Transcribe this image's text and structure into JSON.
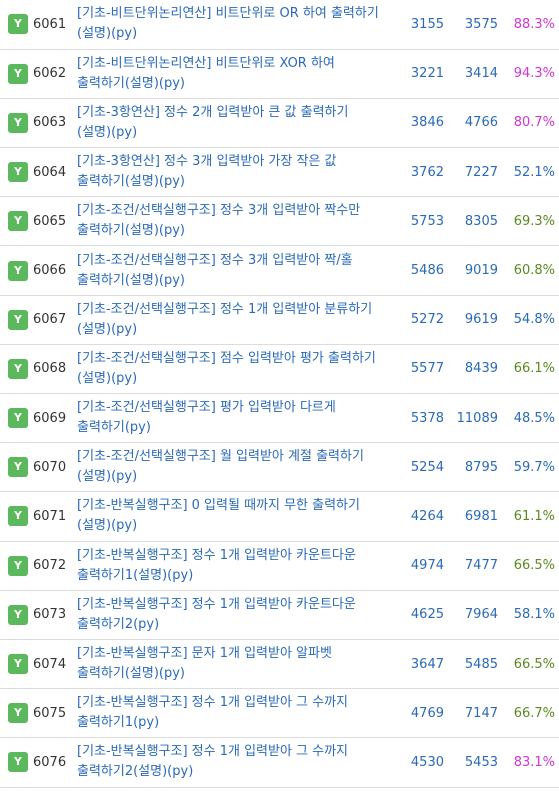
{
  "colors": {
    "badge_bg": "#5cb85c",
    "link": "#2a6ab8",
    "rate_magenta": "#d435d4",
    "rate_olive": "#5a8a1f"
  },
  "status_icon": "accepted-badge",
  "problems": [
    {
      "status": "Y",
      "id": "6061",
      "title": "[기초-비트단위논리연산] 비트단위로 OR 하여 출력하기(설명)(py)",
      "solved": "3155",
      "submissions": "3575",
      "rate": "88.3%",
      "rate_color": "#d435d4"
    },
    {
      "status": "Y",
      "id": "6062",
      "title": "[기초-비트단위논리연산] 비트단위로 XOR 하여 출력하기(설명)(py)",
      "solved": "3221",
      "submissions": "3414",
      "rate": "94.3%",
      "rate_color": "#d435d4"
    },
    {
      "status": "Y",
      "id": "6063",
      "title": "[기초-3항연산] 정수 2개 입력받아 큰 값 출력하기(설명)(py)",
      "solved": "3846",
      "submissions": "4766",
      "rate": "80.7%",
      "rate_color": "#d435d4"
    },
    {
      "status": "Y",
      "id": "6064",
      "title": "[기초-3항연산] 정수 3개 입력받아 가장 작은 값 출력하기(설명)(py)",
      "solved": "3762",
      "submissions": "7227",
      "rate": "52.1%",
      "rate_color": "#2a6ab8"
    },
    {
      "status": "Y",
      "id": "6065",
      "title": "[기초-조건/선택실행구조] 정수 3개 입력받아 짝수만 출력하기(설명)(py)",
      "solved": "5753",
      "submissions": "8305",
      "rate": "69.3%",
      "rate_color": "#5a8a1f"
    },
    {
      "status": "Y",
      "id": "6066",
      "title": "[기초-조건/선택실행구조] 정수 3개 입력받아 짝/홀 출력하기(설명)(py)",
      "solved": "5486",
      "submissions": "9019",
      "rate": "60.8%",
      "rate_color": "#5a8a1f"
    },
    {
      "status": "Y",
      "id": "6067",
      "title": "[기초-조건/선택실행구조] 정수 1개 입력받아 분류하기(설명)(py)",
      "solved": "5272",
      "submissions": "9619",
      "rate": "54.8%",
      "rate_color": "#2a6ab8"
    },
    {
      "status": "Y",
      "id": "6068",
      "title": "[기초-조건/선택실행구조] 점수 입력받아 평가 출력하기(설명)(py)",
      "solved": "5577",
      "submissions": "8439",
      "rate": "66.1%",
      "rate_color": "#5a8a1f"
    },
    {
      "status": "Y",
      "id": "6069",
      "title": "[기초-조건/선택실행구조] 평가 입력받아 다르게 출력하기(py)",
      "solved": "5378",
      "submissions": "11089",
      "rate": "48.5%",
      "rate_color": "#2a6ab8"
    },
    {
      "status": "Y",
      "id": "6070",
      "title": "[기초-조건/선택실행구조] 월 입력받아 계절 출력하기(설명)(py)",
      "solved": "5254",
      "submissions": "8795",
      "rate": "59.7%",
      "rate_color": "#2a6ab8"
    },
    {
      "status": "Y",
      "id": "6071",
      "title": "[기초-반복실행구조] 0 입력될 때까지 무한 출력하기(설명)(py)",
      "solved": "4264",
      "submissions": "6981",
      "rate": "61.1%",
      "rate_color": "#5a8a1f"
    },
    {
      "status": "Y",
      "id": "6072",
      "title": "[기초-반복실행구조] 정수 1개 입력받아 카운트다운 출력하기1(설명)(py)",
      "solved": "4974",
      "submissions": "7477",
      "rate": "66.5%",
      "rate_color": "#5a8a1f"
    },
    {
      "status": "Y",
      "id": "6073",
      "title": "[기초-반복실행구조] 정수 1개 입력받아 카운트다운 출력하기2(py)",
      "solved": "4625",
      "submissions": "7964",
      "rate": "58.1%",
      "rate_color": "#2a6ab8"
    },
    {
      "status": "Y",
      "id": "6074",
      "title": "[기초-반복실행구조] 문자 1개 입력받아 알파벳 출력하기(설명)(py)",
      "solved": "3647",
      "submissions": "5485",
      "rate": "66.5%",
      "rate_color": "#5a8a1f"
    },
    {
      "status": "Y",
      "id": "6075",
      "title": "[기초-반복실행구조] 정수 1개 입력받아 그 수까지 출력하기1(py)",
      "solved": "4769",
      "submissions": "7147",
      "rate": "66.7%",
      "rate_color": "#5a8a1f"
    },
    {
      "status": "Y",
      "id": "6076",
      "title": "[기초-반복실행구조] 정수 1개 입력받아 그 수까지 출력하기2(설명)(py)",
      "solved": "4530",
      "submissions": "5453",
      "rate": "83.1%",
      "rate_color": "#d435d4"
    }
  ]
}
